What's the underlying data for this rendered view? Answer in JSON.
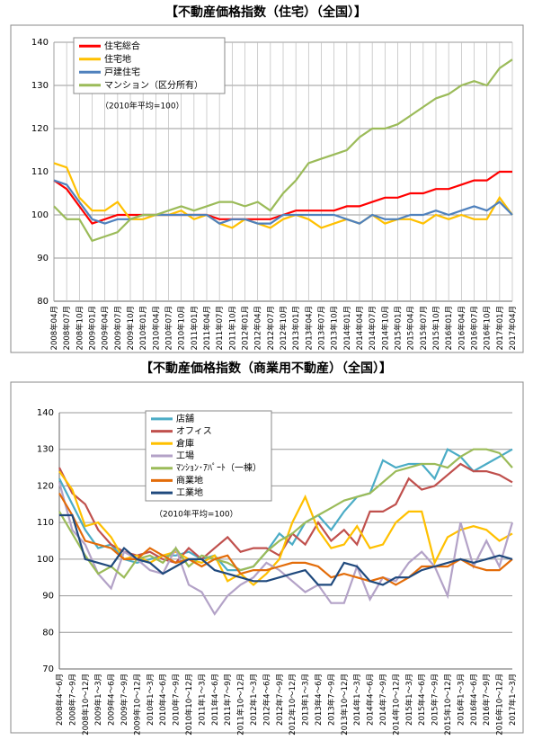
{
  "chart_data": [
    {
      "type": "line",
      "title": "【不動産価格指数（住宅）（全国）】",
      "annotation": "（2010年平均=100）",
      "categories": [
        "2008年04月",
        "2008年07月",
        "2008年10月",
        "2009年01月",
        "2009年04月",
        "2009年07月",
        "2009年10月",
        "2010年01月",
        "2010年04月",
        "2010年07月",
        "2010年10月",
        "2011年01月",
        "2011年04月",
        "2011年07月",
        "2011年10月",
        "2012年01月",
        "2012年04月",
        "2012年07月",
        "2012年10月",
        "2013年01月",
        "2013年04月",
        "2013年07月",
        "2013年10月",
        "2014年01月",
        "2014年04月",
        "2014年07月",
        "2014年10月",
        "2015年01月",
        "2015年04月",
        "2015年07月",
        "2015年10月",
        "2016年01月",
        "2016年04月",
        "2016年07月",
        "2016年10月",
        "2017年01月",
        "2017年04月"
      ],
      "series": [
        {
          "name": "住宅総合",
          "color": "#ff0000",
          "values": [
            108,
            106,
            102,
            98,
            99,
            100,
            100,
            100,
            100,
            100,
            100,
            100,
            100,
            99,
            99,
            99,
            99,
            99,
            100,
            101,
            101,
            101,
            101,
            102,
            102,
            103,
            104,
            104,
            105,
            105,
            106,
            106,
            107,
            108,
            108,
            110,
            110
          ]
        },
        {
          "name": "住宅地",
          "color": "#ffc000",
          "values": [
            112,
            111,
            104,
            101,
            101,
            103,
            99,
            99,
            100,
            100,
            101,
            99,
            100,
            98,
            97,
            99,
            98,
            97,
            99,
            100,
            99,
            97,
            98,
            99,
            98,
            100,
            98,
            99,
            99,
            98,
            100,
            99,
            100,
            99,
            99,
            104,
            100
          ]
        },
        {
          "name": "戸建住宅",
          "color": "#4f81bd",
          "values": [
            108,
            107,
            103,
            99,
            98,
            99,
            99,
            100,
            100,
            100,
            100,
            100,
            100,
            98,
            99,
            99,
            98,
            98,
            100,
            100,
            100,
            100,
            100,
            99,
            98,
            100,
            99,
            99,
            100,
            100,
            101,
            100,
            101,
            102,
            101,
            103,
            100
          ]
        },
        {
          "name": "マンション（区分所有）",
          "color": "#9bbb59",
          "values": [
            102,
            99,
            99,
            94,
            95,
            96,
            99,
            100,
            100,
            101,
            102,
            101,
            102,
            103,
            103,
            102,
            103,
            101,
            105,
            108,
            112,
            113,
            114,
            115,
            118,
            120,
            120,
            121,
            123,
            125,
            127,
            128,
            130,
            131,
            130,
            134,
            136
          ]
        }
      ],
      "ylim": [
        80,
        140
      ],
      "yticks": [
        80,
        90,
        100,
        110,
        120,
        130,
        140
      ],
      "grid": true,
      "xgrid": true,
      "legend": "upper left"
    },
    {
      "type": "line",
      "title": "【不動産価格指数（商業用不動産）（全国）】",
      "annotation": "（2010年平均=100）",
      "categories": [
        "2008年4～6月",
        "2008年7～9月",
        "2008年10～12月",
        "2009年1～3月",
        "2009年4～6月",
        "2009年7～9月",
        "2009年10～12月",
        "2010年1～3月",
        "2010年4～6月",
        "2010年7～9月",
        "2010年10～12月",
        "2011年1～3月",
        "2011年4～6月",
        "2011年7～9月",
        "2011年10～12月",
        "2012年1～3月",
        "2012年4～6月",
        "2012年7～9月",
        "2012年10～12月",
        "2013年1～3月",
        "2013年4～6月",
        "2013年7～9月",
        "2013年10～12月",
        "2014年1～3月",
        "2014年4～6月",
        "2014年7～9月",
        "2014年10～12月",
        "2015年1～3月",
        "2015年4～6月",
        "2015年7～9月",
        "2015年10～12月",
        "2016年1～3月",
        "2016年4～6月",
        "2016年7～9月",
        "2016年10～12月",
        "2017年1～3月"
      ],
      "series": [
        {
          "name": "店舗",
          "color": "#4bacc6",
          "values": [
            122,
            115,
            108,
            103,
            104,
            100,
            99,
            100,
            101,
            101,
            102,
            100,
            101,
            97,
            97,
            98,
            102,
            107,
            104,
            110,
            112,
            108,
            113,
            117,
            118,
            127,
            125,
            126,
            126,
            122,
            130,
            128,
            124,
            126,
            128,
            130
          ]
        },
        {
          "name": "オフィス",
          "color": "#c0504d",
          "values": [
            125,
            118,
            115,
            108,
            104,
            102,
            101,
            102,
            100,
            99,
            103,
            100,
            103,
            106,
            102,
            103,
            103,
            101,
            107,
            104,
            110,
            105,
            108,
            104,
            113,
            113,
            115,
            122,
            119,
            120,
            123,
            126,
            124,
            124,
            123,
            121
          ]
        },
        {
          "name": "倉庫",
          "color": "#ffc000",
          "values": [
            124,
            119,
            109,
            110,
            106,
            100,
            101,
            99,
            101,
            102,
            100,
            99,
            101,
            94,
            96,
            93,
            96,
            100,
            110,
            117,
            108,
            103,
            104,
            109,
            103,
            104,
            110,
            113,
            113,
            99,
            106,
            108,
            109,
            108,
            105,
            107
          ]
        },
        {
          "name": "工場",
          "color": "#b3a2c7",
          "values": [
            121,
            108,
            104,
            96,
            92,
            102,
            100,
            97,
            96,
            103,
            93,
            91,
            85,
            90,
            93,
            95,
            99,
            97,
            94,
            91,
            93,
            88,
            88,
            98,
            89,
            95,
            94,
            99,
            102,
            98,
            90,
            110,
            98,
            105,
            98,
            110
          ]
        },
        {
          "name": "ﾏﾝｼｮﾝ･ｱﾊﾟｰﾄ（一棟）",
          "color": "#9bbb59",
          "values": [
            113,
            107,
            101,
            96,
            98,
            95,
            100,
            101,
            99,
            103,
            98,
            101,
            100,
            99,
            97,
            98,
            102,
            105,
            107,
            110,
            112,
            114,
            116,
            117,
            118,
            121,
            124,
            125,
            126,
            126,
            125,
            128,
            130,
            130,
            129,
            125
          ]
        },
        {
          "name": "商業地",
          "color": "#e36c09",
          "values": [
            118,
            112,
            105,
            104,
            103,
            100,
            100,
            103,
            101,
            99,
            100,
            98,
            100,
            101,
            96,
            97,
            97,
            98,
            99,
            99,
            98,
            95,
            96,
            95,
            94,
            95,
            93,
            95,
            98,
            98,
            98,
            100,
            98,
            97,
            97,
            100
          ]
        },
        {
          "name": "工業地",
          "color": "#1f497d",
          "values": [
            112,
            112,
            100,
            99,
            98,
            103,
            100,
            99,
            96,
            98,
            100,
            100,
            97,
            96,
            95,
            94,
            94,
            95,
            96,
            97,
            93,
            93,
            99,
            98,
            94,
            93,
            95,
            95,
            97,
            98,
            99,
            100,
            99,
            100,
            101,
            100
          ]
        }
      ],
      "ylim": [
        70,
        140
      ],
      "yticks": [
        70,
        80,
        90,
        100,
        110,
        120,
        130,
        140
      ],
      "grid": true,
      "xgrid": false,
      "legend": "upper left"
    }
  ]
}
